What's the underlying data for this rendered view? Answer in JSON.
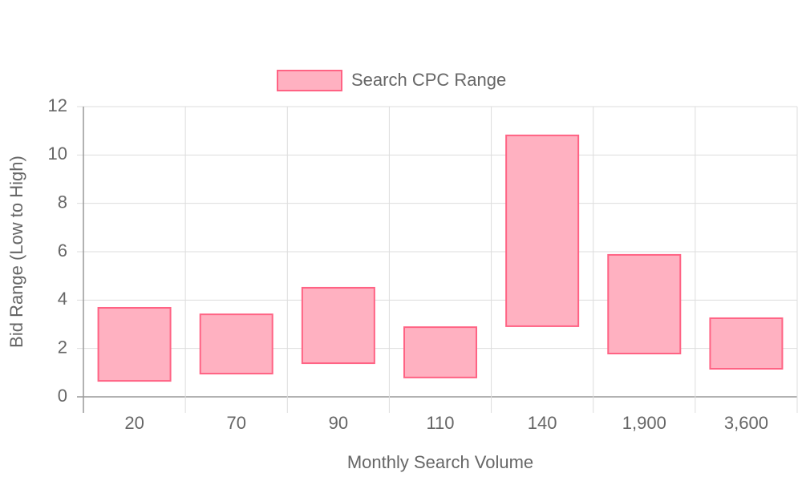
{
  "chart_data": {
    "type": "floating-bar",
    "x_label": "Monthly Search Volume",
    "y_label": "Bid Range (Low to High)",
    "categories": [
      "20",
      "70",
      "90",
      "110",
      "140",
      "1,900",
      "3,600"
    ],
    "series": [
      {
        "name": "Search CPC Range",
        "color": "#ff6384",
        "fill": "#ffb1c1",
        "values": [
          [
            0.66,
            3.68
          ],
          [
            0.96,
            3.41
          ],
          [
            1.39,
            4.51
          ],
          [
            0.8,
            2.88
          ],
          [
            2.92,
            10.81
          ],
          [
            1.79,
            5.87
          ],
          [
            1.16,
            3.25
          ]
        ]
      }
    ],
    "ylim": [
      0,
      12
    ],
    "yticks": [
      0,
      2,
      4,
      6,
      8,
      10,
      12
    ],
    "grid": true,
    "legend": "top"
  }
}
